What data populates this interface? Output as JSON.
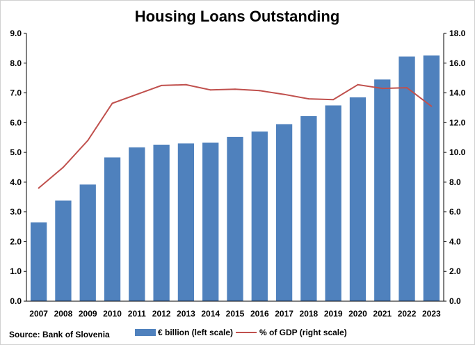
{
  "chart_data": {
    "type": "bar",
    "title": "Housing Loans Outstanding",
    "categories": [
      "2007",
      "2008",
      "2009",
      "2010",
      "2011",
      "2012",
      "2013",
      "2014",
      "2015",
      "2016",
      "2017",
      "2018",
      "2019",
      "2020",
      "2021",
      "2022",
      "2023"
    ],
    "series": [
      {
        "name": "€ billion (left scale)",
        "type": "bar",
        "axis": "left",
        "color": "#4f81bd",
        "values": [
          2.65,
          3.38,
          3.92,
          4.83,
          5.17,
          5.26,
          5.3,
          5.33,
          5.52,
          5.7,
          5.95,
          6.22,
          6.58,
          6.85,
          7.45,
          8.22,
          8.26
        ]
      },
      {
        "name": "% of GDP (right scale)",
        "type": "line",
        "axis": "right",
        "color": "#c0504d",
        "values": [
          7.6,
          9.0,
          10.8,
          13.3,
          13.9,
          14.5,
          14.55,
          14.2,
          14.25,
          14.15,
          13.9,
          13.6,
          13.55,
          14.55,
          14.3,
          14.35,
          13.1
        ]
      }
    ],
    "left_axis": {
      "ylim": [
        0,
        9
      ],
      "ticks": [
        "0.0",
        "1.0",
        "2.0",
        "3.0",
        "4.0",
        "5.0",
        "6.0",
        "7.0",
        "8.0",
        "9.0"
      ]
    },
    "right_axis": {
      "ylim": [
        0,
        18
      ],
      "ticks": [
        "0.0",
        "2.0",
        "4.0",
        "6.0",
        "8.0",
        "10.0",
        "12.0",
        "14.0",
        "16.0",
        "18.0"
      ]
    },
    "grid": false,
    "legend_position": "bottom"
  },
  "source": "Source:  Bank of Slovenia"
}
